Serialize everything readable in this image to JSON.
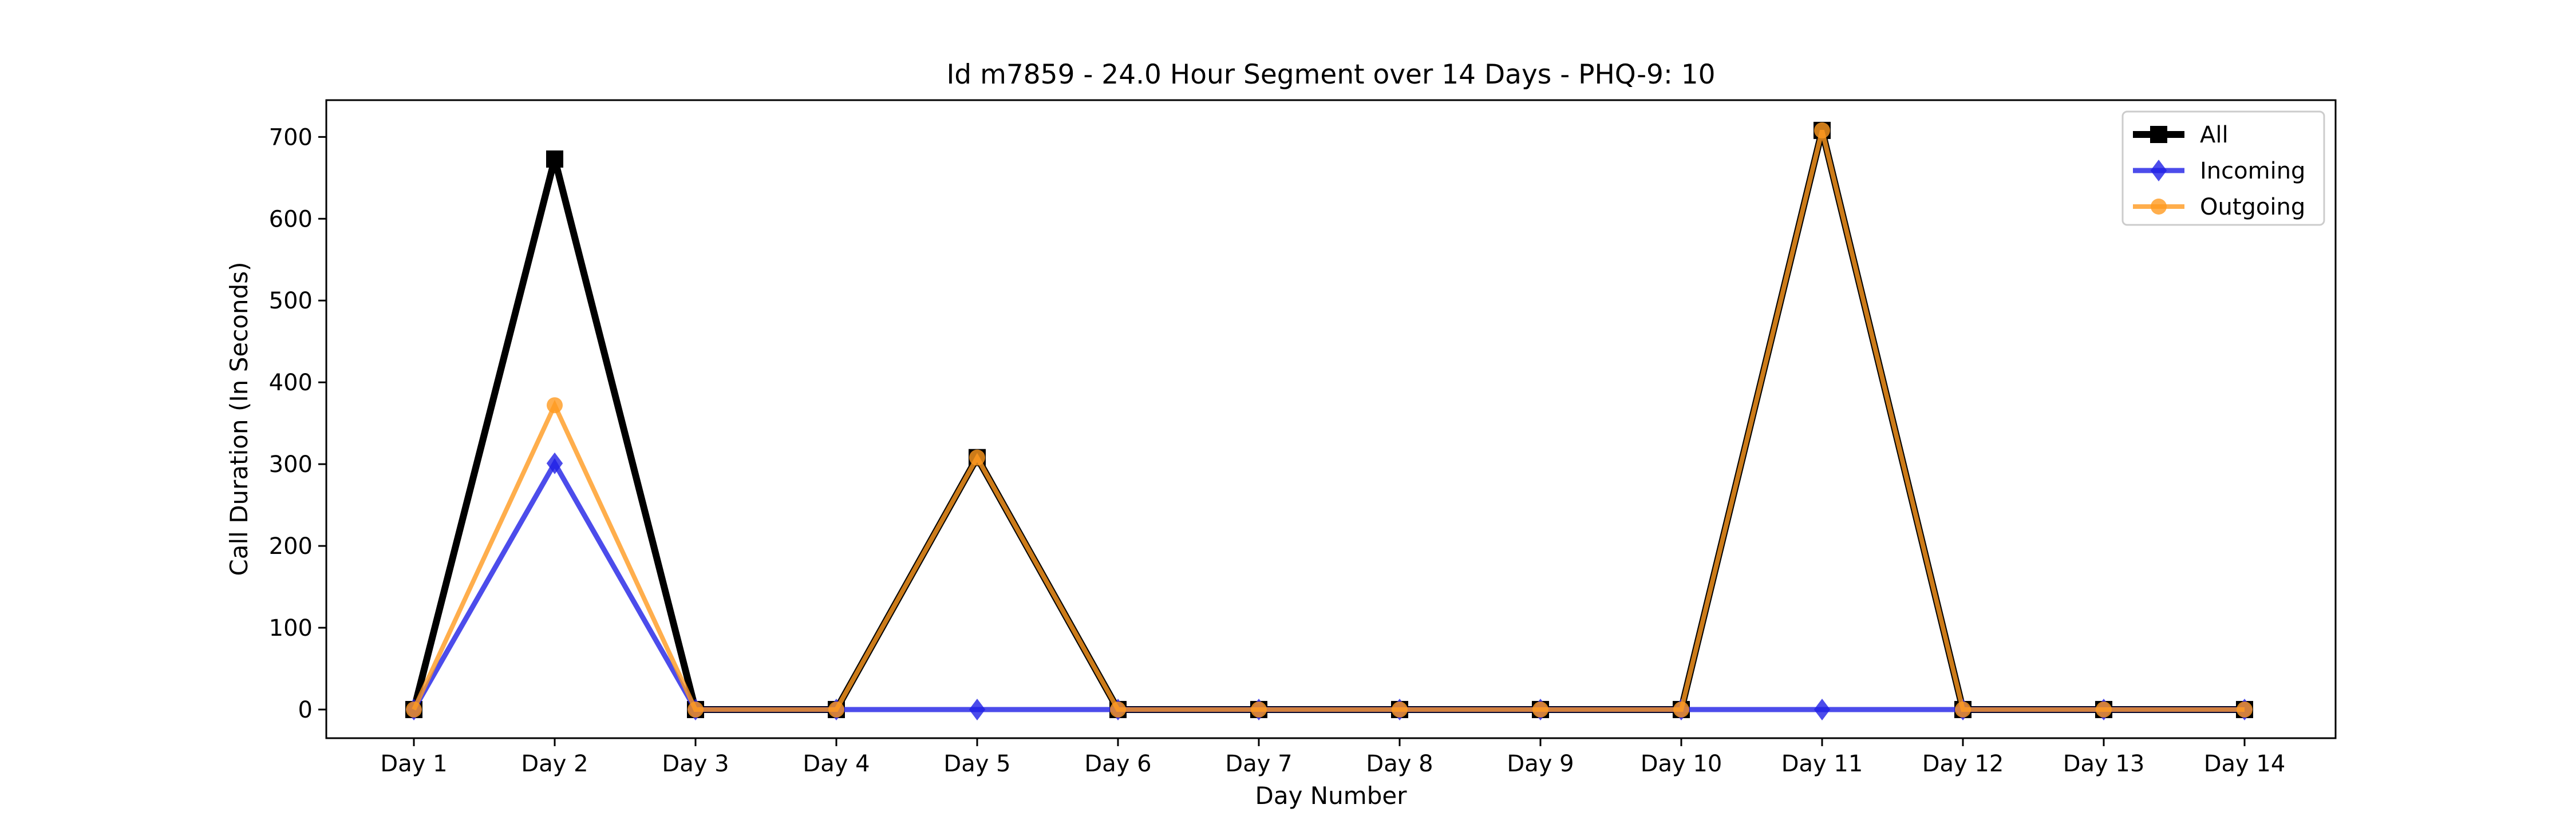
{
  "chart_data": {
    "type": "line",
    "title": "Id m7859 - 24.0 Hour Segment over 14 Days - PHQ-9: 10",
    "xlabel": "Day Number",
    "ylabel": "Call Duration (In Seconds)",
    "categories": [
      "Day 1",
      "Day 2",
      "Day 3",
      "Day 4",
      "Day 5",
      "Day 6",
      "Day 7",
      "Day 8",
      "Day 9",
      "Day 10",
      "Day 11",
      "Day 12",
      "Day 13",
      "Day 14"
    ],
    "ylim": [
      -35,
      745
    ],
    "yticks": [
      0,
      100,
      200,
      300,
      400,
      500,
      600,
      700
    ],
    "grid": false,
    "legend_position": "top-right",
    "series": [
      {
        "name": "All",
        "color": "#000000",
        "marker": "square",
        "values": [
          0,
          673,
          0,
          0,
          308,
          0,
          0,
          0,
          0,
          0,
          708,
          0,
          0,
          0
        ]
      },
      {
        "name": "Incoming",
        "color": "#1f1fe6",
        "marker": "diamond",
        "values": [
          0,
          301,
          0,
          0,
          0,
          0,
          0,
          0,
          0,
          0,
          0,
          0,
          0,
          0
        ]
      },
      {
        "name": "Outgoing",
        "color": "#ff9a1f",
        "marker": "circle",
        "values": [
          0,
          372,
          0,
          0,
          308,
          0,
          0,
          0,
          0,
          0,
          708,
          0,
          0,
          0
        ]
      }
    ]
  }
}
